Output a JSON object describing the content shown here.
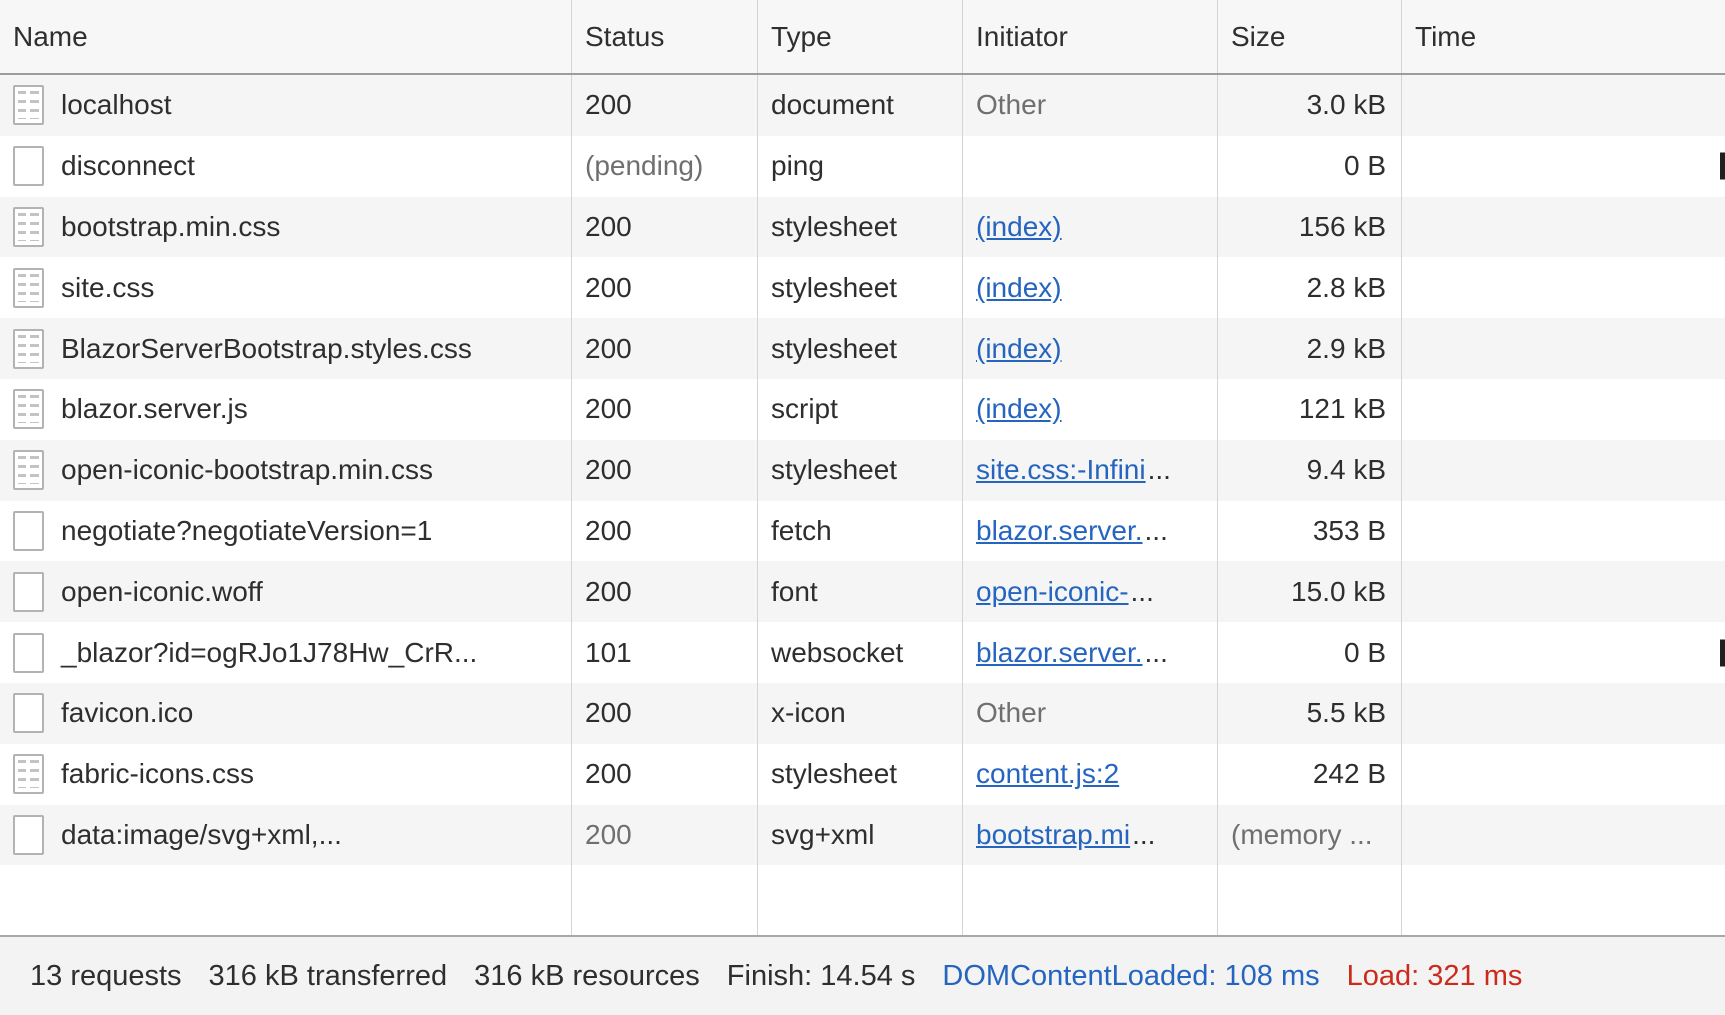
{
  "table": {
    "columns": [
      {
        "id": "name",
        "label": "Name"
      },
      {
        "id": "status",
        "label": "Status"
      },
      {
        "id": "type",
        "label": "Type"
      },
      {
        "id": "initiator",
        "label": "Initiator"
      },
      {
        "id": "size",
        "label": "Size"
      },
      {
        "id": "time",
        "label": "Time"
      }
    ],
    "rows": [
      {
        "name": "localhost",
        "icon": "document-lined",
        "status": "200",
        "status_muted": false,
        "type": "document",
        "initiator": {
          "kind": "text",
          "text": "Other"
        },
        "size": "3.0 kB",
        "size_muted": false,
        "time_cut": false
      },
      {
        "name": "disconnect",
        "icon": "blank",
        "status": "(pending)",
        "status_muted": true,
        "type": "ping",
        "initiator": {
          "kind": "none"
        },
        "size": "0 B",
        "size_muted": false,
        "time_cut": true
      },
      {
        "name": "bootstrap.min.css",
        "icon": "document-lined",
        "status": "200",
        "status_muted": false,
        "type": "stylesheet",
        "initiator": {
          "kind": "link",
          "link": "(index)",
          "ellipsis": ""
        },
        "size": "156 kB",
        "size_muted": false,
        "time_cut": false
      },
      {
        "name": "site.css",
        "icon": "document-lined",
        "status": "200",
        "status_muted": false,
        "type": "stylesheet",
        "initiator": {
          "kind": "link",
          "link": "(index)",
          "ellipsis": ""
        },
        "size": "2.8 kB",
        "size_muted": false,
        "time_cut": false
      },
      {
        "name": "BlazorServerBootstrap.styles.css",
        "icon": "document-lined",
        "status": "200",
        "status_muted": false,
        "type": "stylesheet",
        "initiator": {
          "kind": "link",
          "link": "(index)",
          "ellipsis": ""
        },
        "size": "2.9 kB",
        "size_muted": false,
        "time_cut": false
      },
      {
        "name": "blazor.server.js",
        "icon": "document-lined",
        "status": "200",
        "status_muted": false,
        "type": "script",
        "initiator": {
          "kind": "link",
          "link": "(index)",
          "ellipsis": ""
        },
        "size": "121 kB",
        "size_muted": false,
        "time_cut": false
      },
      {
        "name": "open-iconic-bootstrap.min.css",
        "icon": "document-lined",
        "status": "200",
        "status_muted": false,
        "type": "stylesheet",
        "initiator": {
          "kind": "link",
          "link": "site.css:-Infini",
          "ellipsis": "..."
        },
        "size": "9.4 kB",
        "size_muted": false,
        "time_cut": false
      },
      {
        "name": "negotiate?negotiateVersion=1",
        "icon": "blank",
        "status": "200",
        "status_muted": false,
        "type": "fetch",
        "initiator": {
          "kind": "link",
          "link": "blazor.server.",
          "ellipsis": "..."
        },
        "size": "353 B",
        "size_muted": false,
        "time_cut": false
      },
      {
        "name": "open-iconic.woff",
        "icon": "blank",
        "status": "200",
        "status_muted": false,
        "type": "font",
        "initiator": {
          "kind": "link",
          "link": "open-iconic-",
          "ellipsis": "..."
        },
        "size": "15.0 kB",
        "size_muted": false,
        "time_cut": false
      },
      {
        "name": "_blazor?id=ogRJo1J78Hw_CrR...",
        "icon": "blank",
        "status": "101",
        "status_muted": false,
        "type": "websocket",
        "initiator": {
          "kind": "link",
          "link": "blazor.server.",
          "ellipsis": "..."
        },
        "size": "0 B",
        "size_muted": false,
        "time_cut": true
      },
      {
        "name": "favicon.ico",
        "icon": "blank",
        "status": "200",
        "status_muted": false,
        "type": "x-icon",
        "initiator": {
          "kind": "text",
          "text": "Other"
        },
        "size": "5.5 kB",
        "size_muted": false,
        "time_cut": false
      },
      {
        "name": "fabric-icons.css",
        "icon": "document-lined",
        "status": "200",
        "status_muted": false,
        "type": "stylesheet",
        "initiator": {
          "kind": "link",
          "link": "content.js:2",
          "ellipsis": ""
        },
        "size": "242 B",
        "size_muted": false,
        "time_cut": false
      },
      {
        "name": "data:image/svg+xml,...",
        "icon": "blank",
        "status": "200",
        "status_muted": true,
        "type": "svg+xml",
        "initiator": {
          "kind": "link",
          "link": "bootstrap.mi",
          "ellipsis": "..."
        },
        "size": "(memory ...",
        "size_muted": true,
        "time_cut": false
      }
    ]
  },
  "footer": {
    "requests": "13 requests",
    "transferred": "316 kB transferred",
    "resources": "316 kB resources",
    "finish": "Finish: 14.54 s",
    "dom_content_loaded": "DOMContentLoaded: 108 ms",
    "load": "Load: 321 ms"
  },
  "colors": {
    "link_blue": "#2565c0",
    "footer_load_red": "#cc2a1d",
    "muted_gray": "#6f6f6f",
    "row_stripe": "#f5f5f5",
    "header_bg": "#f7f7f7",
    "footer_bg": "#f3f3f3"
  }
}
